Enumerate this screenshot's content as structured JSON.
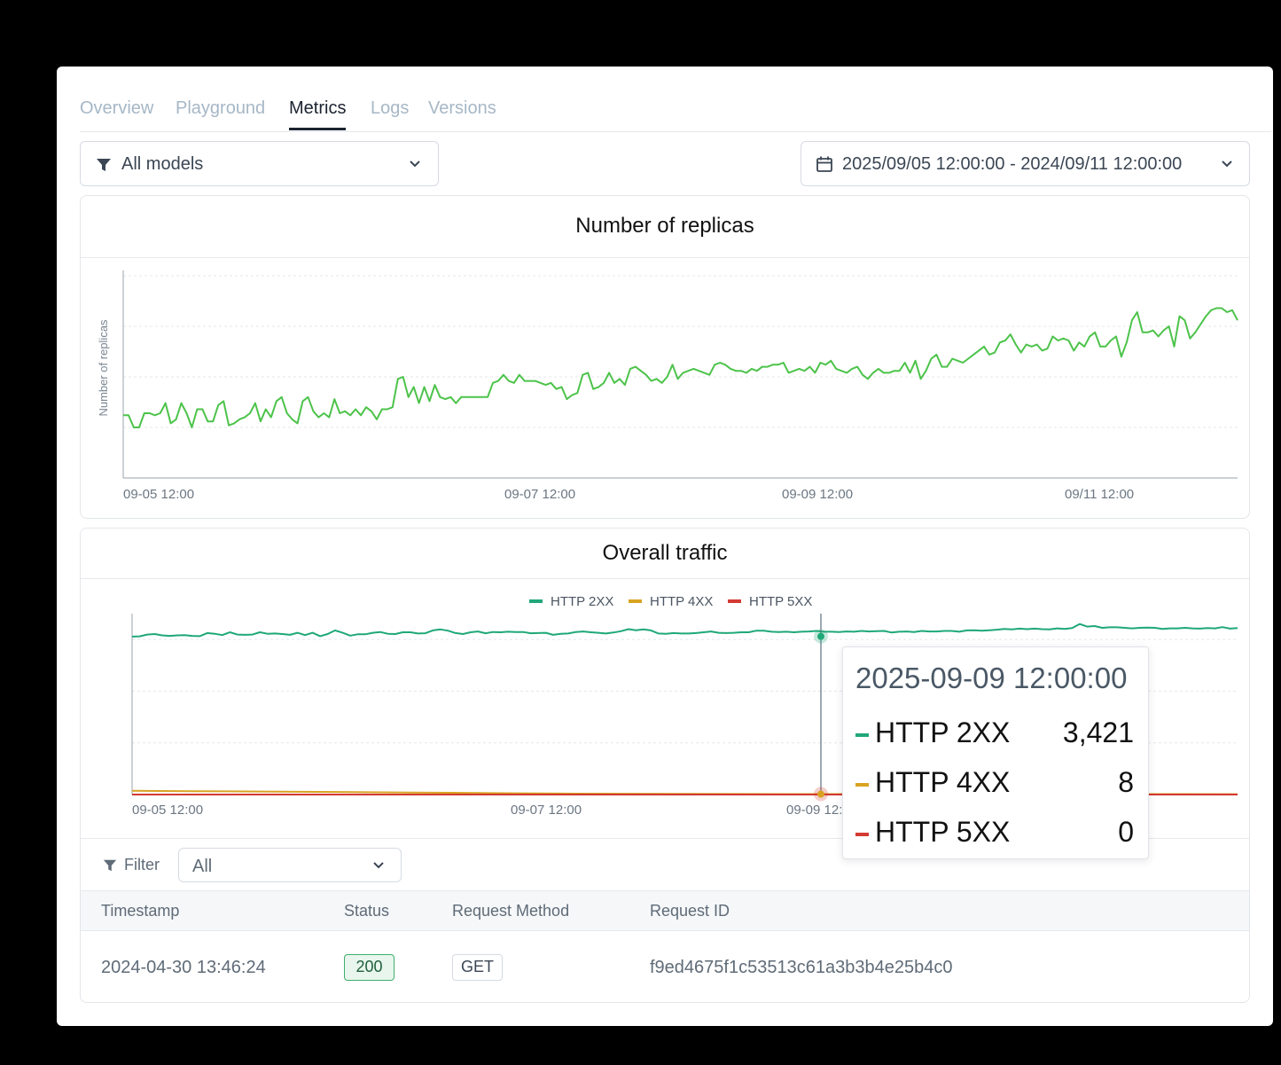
{
  "tabs": [
    {
      "label": "Overview",
      "active": false
    },
    {
      "label": "Playground",
      "active": false
    },
    {
      "label": "Metrics",
      "active": true
    },
    {
      "label": "Logs",
      "active": false
    },
    {
      "label": "Versions",
      "active": false
    }
  ],
  "model_filter": {
    "value": "All models",
    "icon": "filter-icon"
  },
  "date_range": {
    "value": "2025/09/05 12:00:00 - 2024/09/11 12:00:00",
    "icon": "calendar-icon"
  },
  "replicas_panel": {
    "title": "Number of replicas",
    "ylabel": "Number of replicas"
  },
  "traffic_panel": {
    "title": "Overall traffic"
  },
  "colors": {
    "replicas_line": "#4cc34a",
    "http2xx": "#1fa878",
    "http4xx": "#d9a322",
    "http5xx": "#d33a32",
    "tab_active": "#1b2330",
    "tab_inactive": "#a6b7c6"
  },
  "chart_data": [
    {
      "type": "line",
      "title": "Number of replicas",
      "ylabel": "Number of replicas",
      "xlabel": "",
      "x_ticks": [
        "09-05 12:00",
        "09-07 12:00",
        "09-09 12:00",
        "09/11 12:00"
      ],
      "grid": true,
      "ylim": [
        0,
        100
      ],
      "series": [
        {
          "values": [
            31,
            31,
            25,
            25,
            32,
            32,
            31,
            32,
            37,
            27,
            29,
            37,
            32,
            25,
            34,
            34,
            28,
            28,
            36,
            38,
            26,
            27,
            29,
            30,
            32,
            37,
            28,
            34,
            30,
            38,
            40,
            32,
            29,
            27,
            38,
            40,
            33,
            30,
            32,
            30,
            39,
            32,
            33,
            31,
            34,
            31,
            35,
            33,
            29,
            34,
            34,
            35,
            49,
            50,
            40,
            45,
            37,
            45,
            38,
            46,
            40,
            39,
            40,
            37,
            40,
            40,
            40,
            40,
            40,
            40,
            47,
            48,
            51,
            48,
            47,
            51,
            48,
            48,
            48,
            47,
            46,
            47,
            44,
            45,
            39,
            41,
            42,
            51,
            52,
            44,
            45,
            47,
            52,
            47,
            49,
            46,
            54,
            55,
            53,
            51,
            48,
            49,
            47,
            50,
            56,
            49,
            52,
            53,
            54,
            53,
            52,
            51,
            56,
            57,
            56,
            54,
            53,
            53,
            52,
            54,
            53,
            55,
            55,
            56,
            56,
            57,
            52,
            53,
            54,
            53,
            55,
            52,
            57,
            56,
            58,
            54,
            53,
            52,
            54,
            55,
            51,
            49,
            52,
            54,
            52,
            52,
            53,
            53,
            57,
            52,
            58,
            49,
            53,
            59,
            61,
            55,
            55,
            59,
            58,
            57,
            59,
            61,
            63,
            65,
            61,
            62,
            67,
            68,
            71,
            66,
            62,
            66,
            65,
            66,
            63,
            64,
            70,
            68,
            69,
            68,
            63,
            67,
            65,
            70,
            72,
            65,
            65,
            68,
            70,
            60,
            67,
            78,
            82,
            72,
            72,
            73,
            70,
            73,
            75,
            65,
            80,
            78,
            69,
            72,
            76,
            80,
            83,
            84,
            84,
            82,
            83,
            78
          ]
        }
      ]
    },
    {
      "type": "line",
      "title": "Overall traffic",
      "xlabel": "",
      "ylabel": "",
      "x_ticks": [
        "09-05 12:00",
        "09-07 12:00",
        "09-09 12:00"
      ],
      "grid": true,
      "legend": "top",
      "series": [
        {
          "name": "HTTP 2XX",
          "values": [
            3055,
            3060,
            3095,
            3105,
            3080,
            3070,
            3080,
            3085,
            3070,
            3065,
            3125,
            3110,
            3085,
            3140,
            3095,
            3090,
            3095,
            3140,
            3110,
            3115,
            3105,
            3090,
            3130,
            3085,
            3130,
            3065,
            3105,
            3175,
            3130,
            3075,
            3100,
            3100,
            3130,
            3145,
            3110,
            3105,
            3140,
            3140,
            3115,
            3120,
            3175,
            3195,
            3170,
            3125,
            3105,
            3140,
            3155,
            3120,
            3145,
            3140,
            3150,
            3145,
            3145,
            3120,
            3125,
            3130,
            3090,
            3110,
            3115,
            3145,
            3155,
            3140,
            3130,
            3115,
            3135,
            3160,
            3200,
            3180,
            3195,
            3175,
            3115,
            3110,
            3125,
            3115,
            3115,
            3125,
            3140,
            3155,
            3130,
            3125,
            3130,
            3140,
            3140,
            3170,
            3170,
            3150,
            3145,
            3150,
            3140,
            3150,
            3155,
            3165,
            3150,
            3150,
            3145,
            3155,
            3150,
            3165,
            3155,
            3160,
            3165,
            3135,
            3150,
            3155,
            3145,
            3165,
            3155,
            3155,
            3165,
            3165,
            3150,
            3175,
            3180,
            3170,
            3180,
            3190,
            3205,
            3195,
            3210,
            3200,
            3210,
            3200,
            3195,
            3215,
            3205,
            3220,
            3300,
            3250,
            3260,
            3225,
            3235,
            3235,
            3225,
            3215,
            3225,
            3230,
            3225,
            3205,
            3215,
            3215,
            3225,
            3215,
            3210,
            3220,
            3215,
            3240,
            3210,
            3220
          ]
        },
        {
          "name": "HTTP 4XX",
          "values": [
            72,
            66,
            60,
            54,
            48,
            40,
            32,
            24,
            18,
            15,
            12,
            10,
            9,
            9,
            9,
            8,
            8,
            8,
            8,
            8,
            7
          ]
        },
        {
          "name": "HTTP 5XX",
          "values": [
            0,
            0,
            0,
            0,
            0,
            0,
            0,
            0,
            0,
            0,
            0,
            0,
            0,
            0,
            0,
            0,
            0,
            0,
            0,
            0,
            0
          ]
        }
      ],
      "tooltip": {
        "title": "2025-09-09 12:00:00",
        "rows": [
          {
            "name": "HTTP 2XX",
            "value": "3,421"
          },
          {
            "name": "HTTP 4XX",
            "value": "8"
          },
          {
            "name": "HTTP 5XX",
            "value": "0"
          }
        ]
      }
    }
  ],
  "log_filter": {
    "label": "Filter",
    "value": "All"
  },
  "table": {
    "columns": [
      "Timestamp",
      "Status",
      "Request Method",
      "Request ID"
    ],
    "rows": [
      {
        "timestamp": "2024-04-30 13:46:24",
        "status": "200",
        "method": "GET",
        "request_id": "f9ed4675f1c53513c61a3b3b4e25b4c0"
      }
    ]
  }
}
